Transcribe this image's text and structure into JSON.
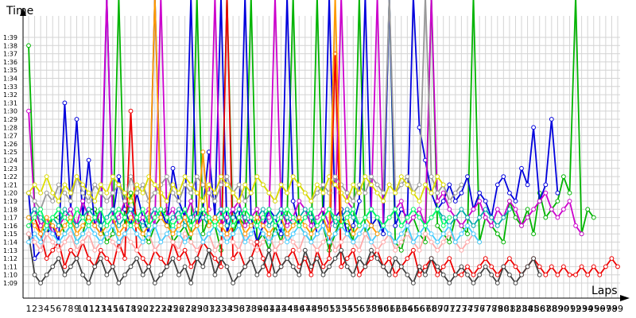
{
  "chart_data": {
    "type": "line",
    "xlabel": "Laps",
    "ylabel": "Time",
    "x_ticks": [
      "1",
      "2",
      "3",
      "4",
      "5",
      "6",
      "7",
      "8",
      "9",
      "10",
      "11",
      "12",
      "13",
      "14",
      "15",
      "16",
      "17",
      "18",
      "19",
      "20",
      "21",
      "22",
      "23",
      "24",
      "25",
      "26",
      "27",
      "28",
      "29",
      "30",
      "31",
      "32",
      "33",
      "34",
      "35",
      "36",
      "37",
      "38",
      "39",
      "40",
      "41",
      "42",
      "43",
      "44",
      "45",
      "46",
      "47",
      "48",
      "49",
      "50",
      "51",
      "52",
      "53",
      "54",
      "55",
      "56",
      "57",
      "58",
      "59",
      "60",
      "61",
      "62",
      "63",
      "64",
      "65",
      "66",
      "67",
      "68",
      "69",
      "70",
      "71",
      "72",
      "73",
      "74",
      "75",
      "76",
      "77",
      "78",
      "79",
      "80",
      "81",
      "82",
      "83",
      "84",
      "85",
      "86",
      "87",
      "88",
      "89",
      "90",
      "91",
      "92",
      "93",
      "94",
      "95",
      "96",
      "97",
      "98",
      "99"
    ],
    "y_ticks": [
      "1:09",
      "1:10",
      "1:11",
      "1:12",
      "1:13",
      "1:14",
      "1:15",
      "1:16",
      "1:17",
      "1:18",
      "1:19",
      "1:20",
      "1:21",
      "1:22",
      "1:23",
      "1:24",
      "1:25",
      "1:26",
      "1:27",
      "1:28",
      "1:29",
      "1:30",
      "1:31",
      "1:32",
      "1:33",
      "1:34",
      "1:35",
      "1:36",
      "1:37",
      "1:38",
      "1:39"
    ],
    "x_range": [
      1,
      99
    ],
    "y_range_seconds": [
      69,
      99
    ],
    "grid": true,
    "series": [
      {
        "color": "#00b400",
        "values": [
          98,
          78,
          76,
          75,
          77,
          77,
          75,
          76,
          74,
          75,
          78,
          78,
          76,
          74,
          75,
          120,
          76,
          80,
          77,
          75,
          74,
          76,
          77,
          78,
          74,
          75,
          76,
          74,
          120,
          75,
          77,
          76,
          73,
          120,
          75,
          77,
          76,
          120,
          74,
          75,
          73,
          76,
          74,
          77,
          120,
          76,
          75,
          74,
          120,
          76,
          73,
          75,
          77,
          76,
          74,
          120,
          75,
          76,
          77,
          75,
          120,
          74,
          73,
          76,
          77,
          75,
          74,
          120,
          76,
          75,
          74,
          77,
          76,
          75,
          120,
          74,
          77,
          76,
          75,
          74,
          79,
          77,
          76,
          78,
          75,
          80,
          77,
          78,
          79,
          82,
          80,
          120,
          75,
          78,
          77
        ]
      },
      {
        "color": "#0000dd",
        "values": [
          80,
          72,
          73,
          75,
          76,
          74,
          91,
          78,
          89,
          77,
          84,
          76,
          75,
          120,
          77,
          82,
          78,
          76,
          80,
          77,
          75,
          120,
          78,
          76,
          83,
          79,
          77,
          120,
          76,
          78,
          85,
          77,
          120,
          75,
          78,
          76,
          120,
          77,
          74,
          76,
          78,
          77,
          75,
          120,
          79,
          76,
          77,
          78,
          75,
          76,
          120,
          77,
          78,
          75,
          76,
          79,
          120,
          76,
          77,
          75,
          120,
          76,
          78,
          77,
          120,
          88,
          84,
          80,
          78,
          79,
          81,
          79,
          80,
          82,
          78,
          80,
          79,
          77,
          81,
          82,
          80,
          79,
          83,
          81,
          88,
          79,
          81,
          89,
          80
        ]
      },
      {
        "color": "#ee0000",
        "values": [
          76,
          77,
          75,
          72,
          73,
          74,
          71,
          73,
          72,
          74,
          72,
          71,
          73,
          72,
          71,
          74,
          72,
          90,
          73,
          72,
          71,
          73,
          72,
          71,
          74,
          72,
          73,
          71,
          72,
          74,
          73,
          72,
          71,
          120,
          72,
          73,
          71,
          72,
          74,
          72,
          70,
          73,
          71,
          72,
          73,
          71,
          72,
          70,
          73,
          71,
          72,
          97,
          71,
          72,
          73,
          70,
          71,
          72,
          73,
          71,
          72,
          70,
          71,
          72,
          73,
          70,
          71,
          72,
          70,
          71,
          72,
          70,
          70,
          71,
          70,
          71,
          72,
          71,
          70,
          71,
          72,
          71,
          70,
          71,
          72,
          71,
          70,
          71,
          70,
          71,
          70,
          70,
          71,
          70,
          71,
          70,
          71,
          72,
          71
        ]
      },
      {
        "color": "#cc00cc",
        "values": [
          90,
          78,
          76,
          77,
          75,
          76,
          77,
          78,
          76,
          79,
          77,
          76,
          78,
          120,
          76,
          77,
          79,
          78,
          76,
          77,
          78,
          76,
          120,
          77,
          78,
          76,
          77,
          79,
          76,
          77,
          78,
          120,
          76,
          77,
          78,
          79,
          76,
          77,
          78,
          76,
          77,
          120,
          78,
          76,
          77,
          79,
          78,
          76,
          77,
          78,
          76,
          77,
          120,
          79,
          78,
          76,
          77,
          78,
          120,
          76,
          77,
          78,
          79,
          76,
          77,
          78,
          76,
          120,
          79,
          80,
          78,
          77,
          76,
          77,
          78,
          79,
          77,
          76,
          78,
          77,
          79,
          78,
          76,
          77,
          78,
          79,
          80,
          78,
          77,
          78,
          79,
          76,
          75
        ]
      },
      {
        "color": "#404040",
        "values": [
          75,
          70,
          69,
          70,
          71,
          72,
          70,
          71,
          72,
          70,
          69,
          71,
          72,
          70,
          71,
          69,
          70,
          71,
          72,
          70,
          71,
          69,
          70,
          71,
          72,
          70,
          71,
          69,
          72,
          71,
          73,
          70,
          72,
          71,
          69,
          70,
          71,
          72,
          70,
          71,
          73,
          70,
          71,
          72,
          71,
          70,
          73,
          71,
          72,
          70,
          71,
          72,
          73,
          71,
          70,
          72,
          71,
          73,
          72,
          71,
          70,
          72,
          71,
          70,
          69,
          71,
          70,
          72,
          71,
          70,
          69,
          70,
          71,
          70,
          69,
          70,
          71,
          70,
          69,
          71,
          70,
          69,
          70,
          71,
          72,
          70
        ]
      },
      {
        "color": "#00aaaa",
        "values": [
          77,
          78,
          77,
          76,
          77,
          76,
          78,
          77,
          76,
          77,
          78,
          77,
          76,
          77,
          78,
          76,
          77,
          78,
          77,
          76,
          77,
          78,
          77,
          76,
          77,
          78,
          76,
          77,
          78,
          77,
          76,
          77,
          78,
          76,
          77,
          78,
          77,
          76,
          77,
          78,
          76,
          77,
          78,
          77,
          76,
          77,
          78,
          77,
          76,
          77,
          78,
          76,
          77,
          78,
          77,
          76,
          77,
          78,
          77,
          76,
          77,
          78,
          76,
          77,
          78,
          77,
          76,
          77,
          78,
          77,
          76,
          77,
          78,
          77,
          76,
          77,
          78,
          77,
          76,
          77,
          78
        ]
      },
      {
        "color": "#999999",
        "values": [
          80,
          79,
          78,
          80,
          79,
          81,
          80,
          79,
          82,
          80,
          79,
          81,
          80,
          79,
          80,
          81,
          79,
          82,
          80,
          81,
          79,
          80,
          81,
          82,
          80,
          79,
          81,
          80,
          82,
          81,
          80,
          79,
          81,
          82,
          80,
          81,
          79,
          80,
          82,
          81,
          80,
          79,
          81,
          80,
          82,
          81,
          80,
          79,
          80,
          81,
          80,
          82,
          81,
          80,
          79,
          81,
          80,
          82,
          81,
          80,
          120,
          80,
          81,
          82,
          80,
          81,
          120,
          82,
          80,
          81,
          79,
          80,
          81
        ]
      },
      {
        "color": "#ffaaaa",
        "values": [
          75,
          74,
          73,
          75,
          74,
          73,
          74,
          75,
          73,
          74,
          75,
          73,
          74,
          75,
          74,
          73,
          75,
          74,
          73,
          74,
          75,
          73,
          74,
          75,
          74,
          73,
          75,
          74,
          73,
          74,
          75,
          73,
          74,
          75,
          74,
          73,
          75,
          74,
          73,
          74,
          75,
          73,
          74,
          75,
          74,
          73,
          75,
          74,
          73,
          74,
          75,
          73,
          74,
          75,
          74,
          73,
          75,
          74,
          73,
          74,
          75,
          73,
          74,
          75,
          74,
          73,
          75,
          74,
          73,
          74,
          75,
          74,
          73,
          74,
          75,
          74
        ]
      },
      {
        "color": "#dddd00",
        "values": [
          80,
          81,
          80,
          82,
          80,
          79,
          81,
          80,
          82,
          81,
          80,
          79,
          81,
          80,
          82,
          81,
          80,
          79,
          81,
          80,
          82,
          81,
          80,
          79,
          81,
          80,
          82,
          81,
          80,
          79,
          81,
          80,
          82,
          81,
          80,
          79,
          81,
          80,
          82,
          81,
          80,
          79,
          81,
          80,
          82,
          81,
          80,
          79,
          81,
          80,
          82,
          81,
          80,
          79,
          81,
          80,
          82,
          81,
          80,
          79,
          81,
          80,
          82,
          81,
          80,
          79,
          81,
          80,
          82,
          81
        ]
      },
      {
        "color": "#44ccff",
        "values": [
          74,
          75,
          74,
          76,
          75,
          74,
          75,
          76,
          74,
          75,
          76,
          75,
          74,
          75,
          76,
          74,
          75,
          76,
          75,
          74,
          75,
          76,
          74,
          75,
          76,
          75,
          74,
          75,
          76,
          74,
          75,
          76,
          75,
          74,
          75,
          76,
          74,
          75,
          76,
          75,
          74,
          75,
          76,
          74,
          75,
          76,
          75,
          74,
          75,
          76,
          74,
          75,
          76,
          75,
          74,
          75,
          76,
          74,
          75,
          76,
          75,
          74,
          75,
          76,
          74,
          75,
          76,
          75,
          74,
          75,
          76,
          74,
          75,
          76,
          75,
          74
        ]
      },
      {
        "color": "#ff9900",
        "values": [
          77,
          76,
          75,
          77,
          76,
          75,
          76,
          77,
          75,
          76,
          77,
          76,
          75,
          76,
          77,
          75,
          76,
          77,
          76,
          75,
          76,
          120,
          77,
          76,
          75,
          76,
          77,
          75,
          76,
          85,
          76,
          77,
          76,
          75,
          76,
          77,
          75,
          76,
          77,
          76,
          75,
          76,
          77,
          75,
          76,
          77,
          76,
          75,
          76,
          77,
          75,
          120,
          76,
          77,
          75,
          76,
          77,
          76,
          75
        ]
      },
      {
        "color": "#00ff66",
        "values": [
          76,
          77,
          78,
          76,
          77,
          78,
          77,
          76,
          78,
          77,
          76,
          77,
          78,
          76,
          77,
          78,
          77,
          76,
          77,
          78,
          76,
          77,
          78,
          77,
          76,
          77,
          78,
          76,
          77,
          78,
          77,
          76,
          77,
          78,
          76,
          77,
          78,
          77,
          76,
          77,
          78,
          76,
          77,
          78,
          77,
          76,
          77,
          78,
          76,
          77,
          78,
          77,
          76,
          77,
          78,
          76,
          77,
          78,
          77,
          76,
          77,
          78,
          76,
          77,
          78,
          77,
          76,
          77,
          78,
          76,
          77
        ]
      }
    ]
  }
}
